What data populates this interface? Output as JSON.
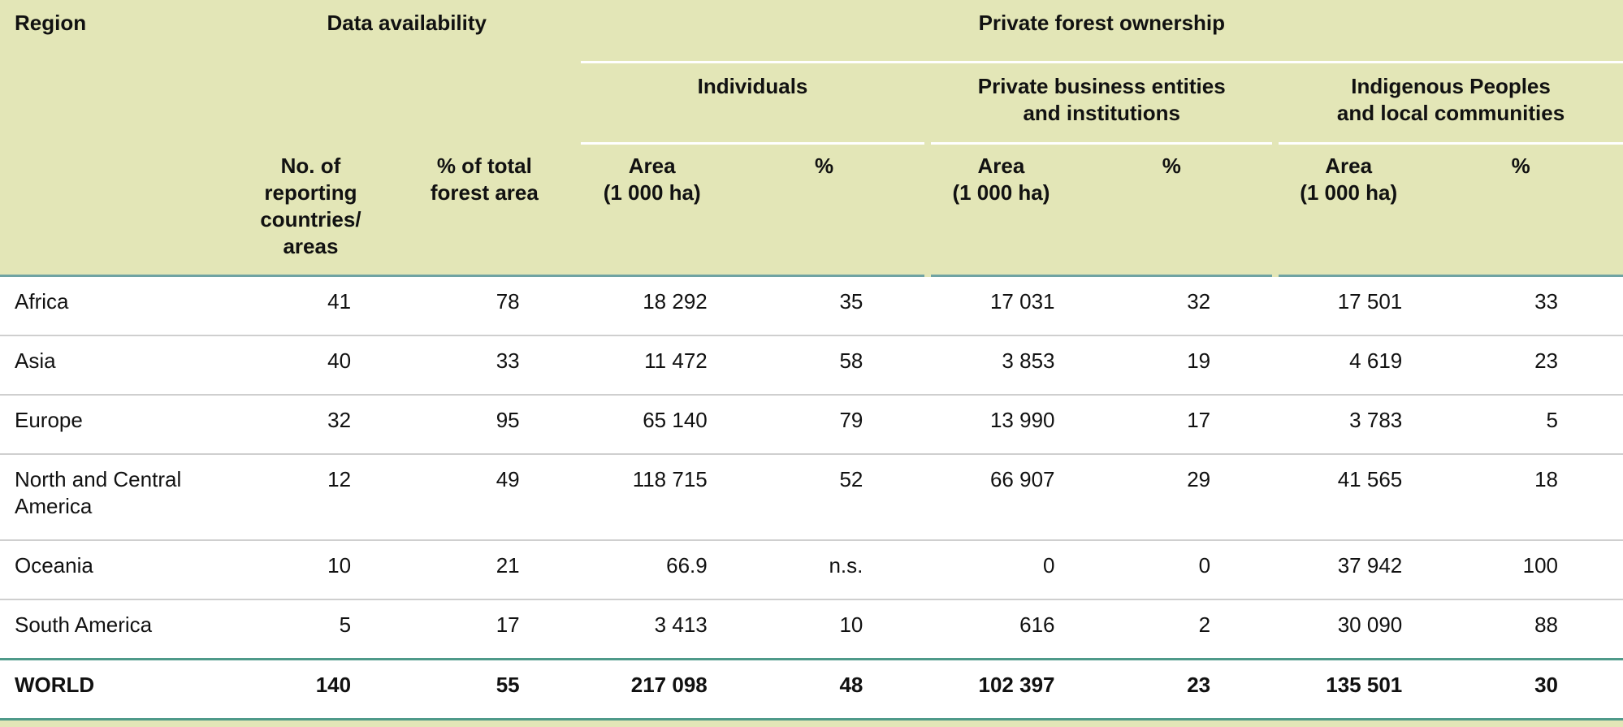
{
  "header": {
    "region": "Region",
    "data_availability": "Data availability",
    "private_ownership": "Private forest ownership",
    "groups": {
      "individuals": "Individuals",
      "business": [
        "Private business entities",
        "and institutions"
      ],
      "indigenous": [
        "Indigenous Peoples",
        "and local communities"
      ]
    },
    "subcols": {
      "num_countries": [
        "No. of",
        "reporting",
        "countries/",
        "areas"
      ],
      "pct_forest": [
        "% of total",
        "forest area"
      ],
      "area": [
        "Area",
        "(1 000 ha)"
      ],
      "pct": "%"
    }
  },
  "rows": [
    {
      "region": "Africa",
      "n": "41",
      "pct_total": "78",
      "ind_area": "18 292",
      "ind_pct": "35",
      "bus_area": "17 031",
      "bus_pct": "32",
      "ip_area": "17 501",
      "ip_pct": "33"
    },
    {
      "region": "Asia",
      "n": "40",
      "pct_total": "33",
      "ind_area": "11 472",
      "ind_pct": "58",
      "bus_area": "3 853",
      "bus_pct": "19",
      "ip_area": "4 619",
      "ip_pct": "23"
    },
    {
      "region": "Europe",
      "n": "32",
      "pct_total": "95",
      "ind_area": "65 140",
      "ind_pct": "79",
      "bus_area": "13 990",
      "bus_pct": "17",
      "ip_area": "3 783",
      "ip_pct": "5"
    },
    {
      "region_lines": [
        "North and Central",
        "America"
      ],
      "n": "12",
      "pct_total": "49",
      "ind_area": "118 715",
      "ind_pct": "52",
      "bus_area": "66 907",
      "bus_pct": "29",
      "ip_area": "41 565",
      "ip_pct": "18"
    },
    {
      "region": "Oceania",
      "n": "10",
      "pct_total": "21",
      "ind_area": "66.9",
      "ind_pct": "n.s.",
      "bus_area": "0",
      "bus_pct": "0",
      "ip_area": "37 942",
      "ip_pct": "100"
    },
    {
      "region": "South America",
      "n": "5",
      "pct_total": "17",
      "ind_area": "3 413",
      "ind_pct": "10",
      "bus_area": "616",
      "bus_pct": "2",
      "ip_area": "30 090",
      "ip_pct": "88"
    }
  ],
  "world": {
    "region": "WORLD",
    "n": "140",
    "pct_total": "55",
    "ind_area": "217 098",
    "ind_pct": "48",
    "bus_area": "102 397",
    "bus_pct": "23",
    "ip_area": "135 501",
    "ip_pct": "30"
  }
}
